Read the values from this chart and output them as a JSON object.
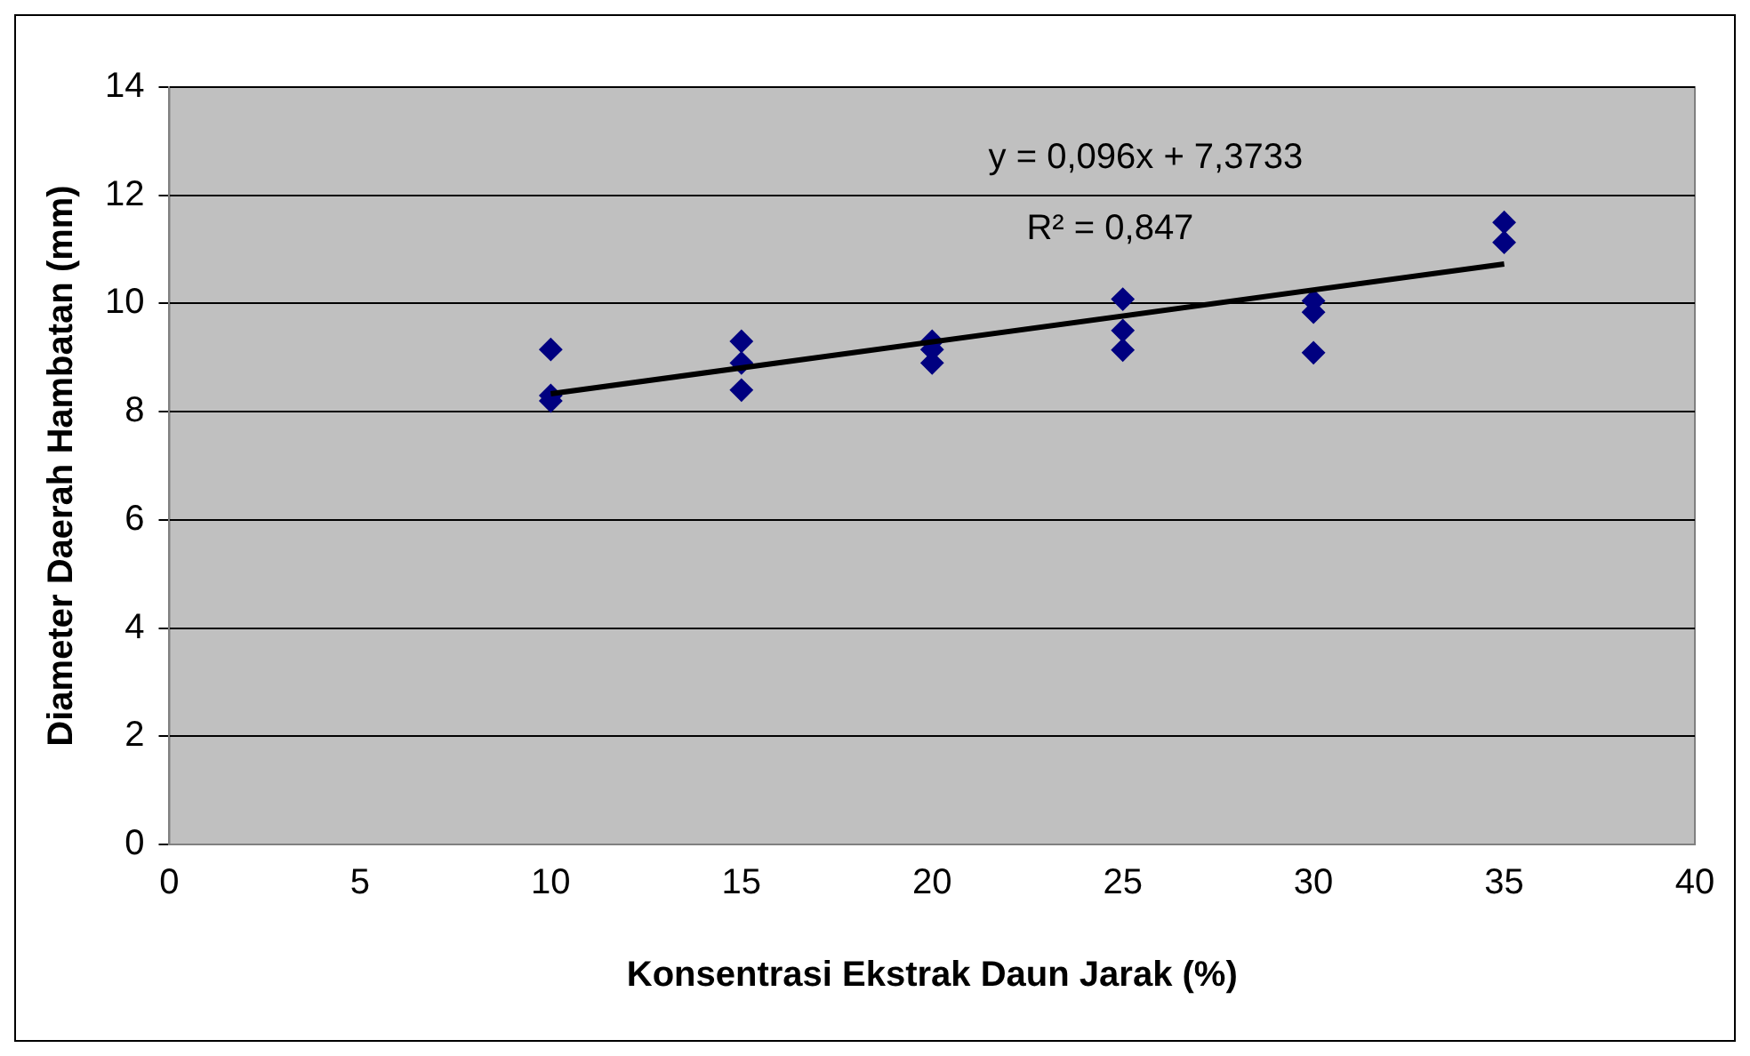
{
  "chart_data": {
    "type": "scatter",
    "xlabel": "Konsentrasi Ekstrak Daun Jarak (%)",
    "ylabel": "Diameter Daerah Hambatan (mm)",
    "xlim": [
      0,
      40
    ],
    "xticks": [
      0,
      5,
      10,
      15,
      20,
      25,
      30,
      35,
      40
    ],
    "ylim": [
      0,
      14
    ],
    "yticks": [
      0,
      2,
      4,
      6,
      8,
      10,
      12,
      14
    ],
    "grid": "y",
    "legend": false,
    "series": [
      {
        "marker": "diamond",
        "color": "#000080",
        "x": [
          10,
          10,
          10,
          15,
          15,
          15,
          20,
          20,
          20,
          25,
          25,
          25,
          30,
          30,
          30,
          35,
          35
        ],
        "values": [
          9.15,
          8.3,
          8.2,
          9.3,
          8.9,
          8.4,
          9.3,
          9.15,
          8.9,
          10.08,
          9.5,
          9.14,
          10.05,
          9.84,
          9.09,
          11.5,
          11.13
        ]
      },
      {
        "type": "line",
        "marker": "none",
        "color": "#000000",
        "x": [
          10,
          35
        ],
        "values": [
          8.33,
          10.73
        ]
      }
    ],
    "annotations": [
      "y = 0,096x + 7,3733",
      "R² = 0,847"
    ]
  }
}
